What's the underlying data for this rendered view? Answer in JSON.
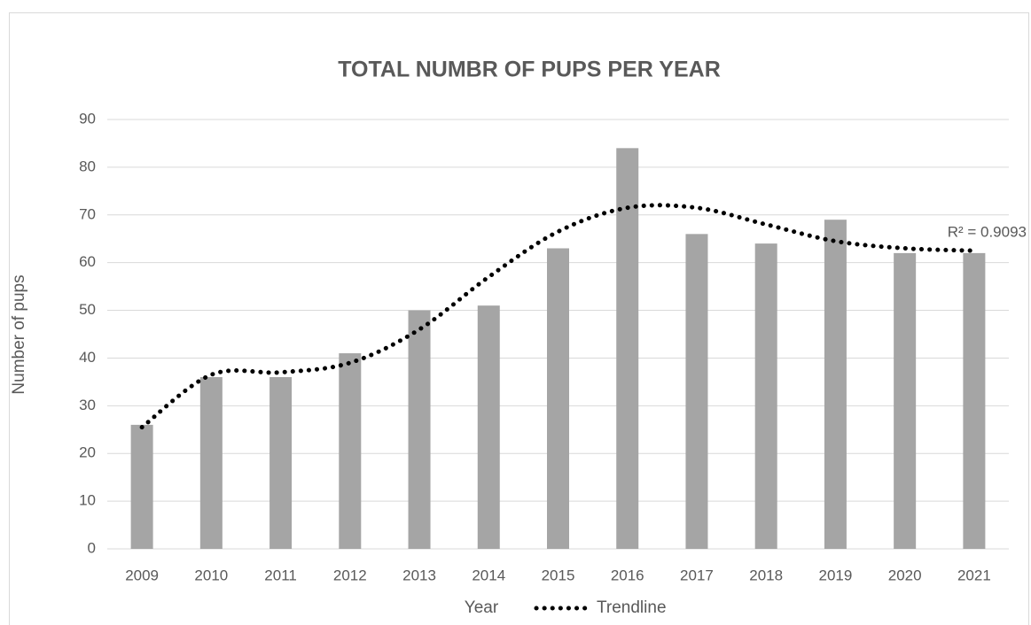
{
  "chart_data": {
    "type": "bar",
    "title": "TOTAL NUMBR OF PUPS PER YEAR",
    "x_label": "Year",
    "y_label": "Number of pups",
    "categories": [
      "2009",
      "2010",
      "2011",
      "2012",
      "2013",
      "2014",
      "2015",
      "2016",
      "2017",
      "2018",
      "2019",
      "2020",
      "2021"
    ],
    "values": [
      26,
      36,
      36,
      41,
      50,
      51,
      63,
      84,
      66,
      64,
      69,
      62,
      62
    ],
    "color": "#a5a5a5",
    "trendline": {
      "name": "Trendline",
      "color": "#000000",
      "values": [
        25.5,
        36.5,
        37,
        39,
        46,
        57,
        66.5,
        71.5,
        71.5,
        68,
        64.5,
        63,
        62.5
      ]
    },
    "annotation": "R² = 0.9093",
    "ylim": [
      0,
      90
    ],
    "yticks": [
      0,
      10,
      20,
      30,
      40,
      50,
      60,
      70,
      80,
      90
    ],
    "grid": true
  }
}
